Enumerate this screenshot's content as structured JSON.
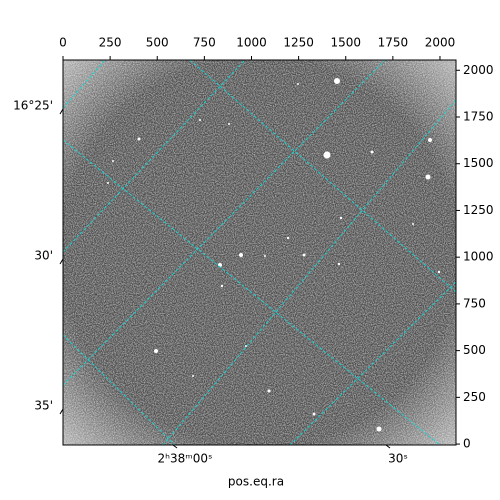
{
  "chart_data": {
    "type": "image",
    "xlabel": "pos.eq.ra",
    "xlim": [
      0,
      2085
    ],
    "xticks": [
      0,
      250,
      500,
      750,
      1000,
      1250,
      1500,
      1750,
      2000
    ],
    "ylim": [
      -5,
      2055
    ],
    "yticks": [
      0,
      250,
      500,
      750,
      1000,
      1250,
      1500,
      1750,
      2000
    ],
    "dec_tick_labels": [
      "16°25'",
      "30'",
      "35'"
    ],
    "ra_tick_labels": [
      "2ʰ38ᵐ00ˢ",
      "30ˢ"
    ]
  }
}
